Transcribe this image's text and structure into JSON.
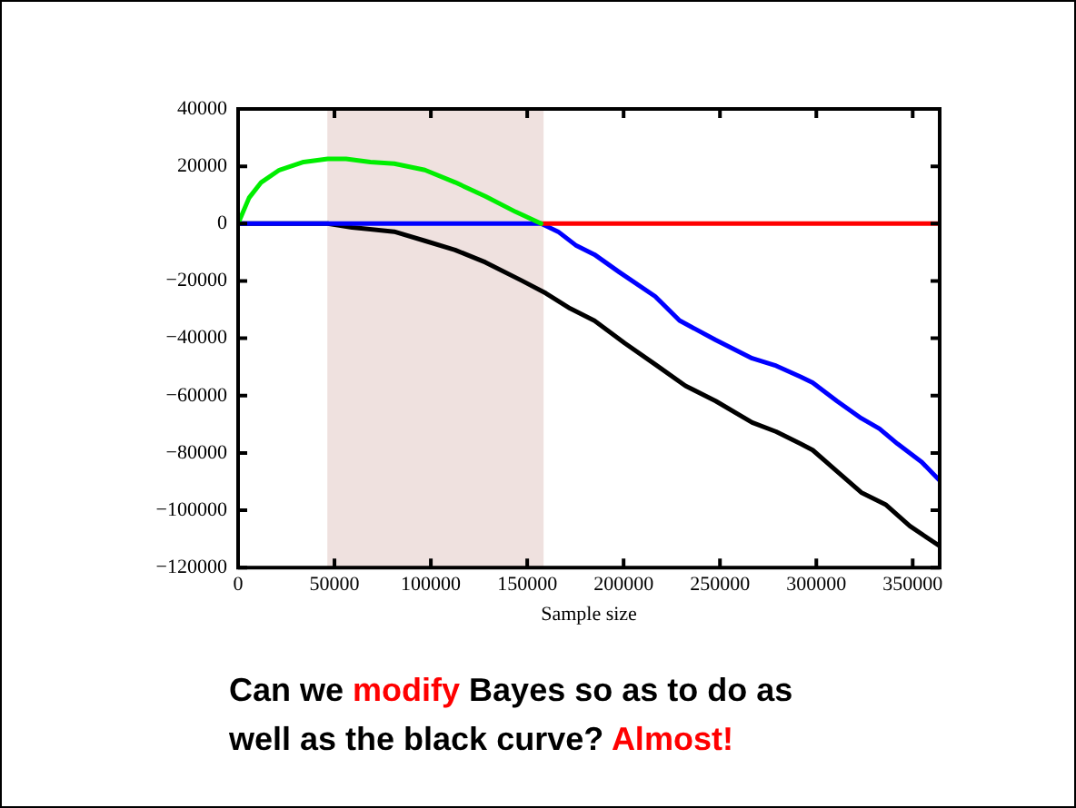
{
  "chart_data": {
    "type": "line",
    "xlabel": "Sample size",
    "xlim": [
      0,
      364000
    ],
    "xticks": [
      0,
      50000,
      100000,
      150000,
      200000,
      250000,
      300000,
      350000
    ],
    "ylim": [
      -120000,
      40000
    ],
    "yticks": [
      -120000,
      -100000,
      -80000,
      -60000,
      -40000,
      -20000,
      0,
      20000,
      40000
    ],
    "grid": false,
    "legend": false,
    "marker": "none",
    "line_style": "solid",
    "bands": [
      {
        "axis": "x",
        "from": 46300,
        "to": 158500,
        "color": "#efe1df"
      }
    ],
    "series": [
      {
        "color": "#00ee00",
        "x": [
          0,
          5700,
          12000,
          21400,
          34000,
          46500,
          56000,
          68600,
          81000,
          96900,
          112600,
          128300,
          144000,
          157200
        ],
        "values": [
          0,
          9000,
          14400,
          18700,
          21500,
          22600,
          22600,
          21500,
          20900,
          18700,
          14400,
          9500,
          4100,
          0
        ]
      },
      {
        "color": "#ff0000",
        "x": [
          157200,
          364000
        ],
        "values": [
          0,
          0
        ]
      },
      {
        "color": "#0000ff",
        "x": [
          0,
          157200,
          166000,
          175500,
          184900,
          197500,
          216400,
          229000,
          247800,
          266700,
          279200,
          291800,
          298100,
          310700,
          323300,
          332700,
          342100,
          354700,
          364000
        ],
        "values": [
          0,
          0,
          -2800,
          -7700,
          -10800,
          -16800,
          -25400,
          -33800,
          -40600,
          -47000,
          -49600,
          -53400,
          -55500,
          -61900,
          -67900,
          -71500,
          -76800,
          -83200,
          -89600
        ]
      },
      {
        "color": "#000000",
        "x": [
          0,
          46500,
          59100,
          81000,
          96900,
          112600,
          128300,
          147200,
          159700,
          172300,
          184900,
          200600,
          216400,
          232100,
          247800,
          266700,
          279200,
          291800,
          298100,
          310700,
          323300,
          335900,
          348500,
          364000
        ],
        "values": [
          0,
          0,
          -1300,
          -2800,
          -6000,
          -9200,
          -13500,
          -19900,
          -24300,
          -29600,
          -33900,
          -41700,
          -49100,
          -56600,
          -61900,
          -69400,
          -72600,
          -76800,
          -79000,
          -86400,
          -93800,
          -98000,
          -105500,
          -112500
        ]
      }
    ],
    "annotations": [
      "Can we ",
      "modify",
      " Bayes so as to do as well as the black curve? ",
      "Almost!"
    ]
  }
}
